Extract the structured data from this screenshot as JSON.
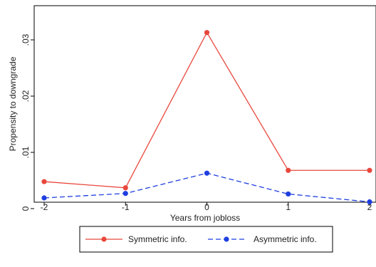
{
  "chart_data": {
    "type": "line",
    "title": "",
    "xlabel": "Years from jobloss",
    "ylabel": "Propensity to downgrade",
    "x": [
      -2,
      -1,
      0,
      1,
      2
    ],
    "xticks": [
      -2,
      -1,
      0,
      1,
      2
    ],
    "xtick_labels": [
      "-2",
      "-1",
      "0",
      "1",
      "2"
    ],
    "yticks": [
      0,
      0.01,
      0.02,
      0.03
    ],
    "ytick_labels": [
      "0",
      ".01",
      ".02",
      ".03"
    ],
    "xlim": [
      -2,
      2
    ],
    "ylim": [
      0,
      0.03
    ],
    "grid": false,
    "legend_position": "bottom",
    "series": [
      {
        "name": "Symmetric info.",
        "values": [
          0.0048,
          0.0037,
          0.0313,
          0.0068,
          0.0068
        ],
        "color": "#e8473c",
        "dash": "solid"
      },
      {
        "name": "Asymmetric info.",
        "values": [
          0.0019,
          0.0027,
          0.0063,
          0.0026,
          0.0012
        ],
        "color": "#1f3fe0",
        "dash": "dashed"
      }
    ]
  }
}
